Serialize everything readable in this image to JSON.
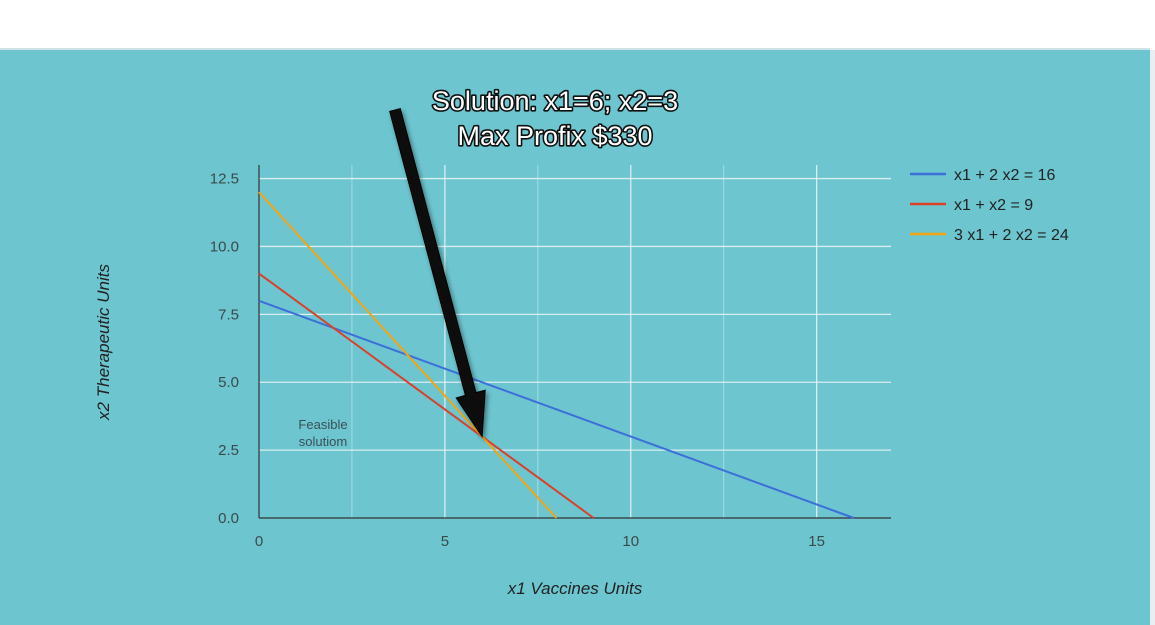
{
  "callout": {
    "line1": "Solution: x1=6; x2=3",
    "line2": "Max Profix $330",
    "target": {
      "x": 6,
      "y": 3
    }
  },
  "annotation": {
    "line1": "Feasible",
    "line2": "solutiom"
  },
  "chart_data": {
    "type": "line",
    "title": "",
    "xlabel": "x1 Vaccines Units",
    "ylabel": "x2 Therapeutic Units",
    "xlim": [
      0,
      17
    ],
    "ylim": [
      0,
      13
    ],
    "xticks": [
      0,
      5,
      10,
      15
    ],
    "xtick_labels": [
      "0",
      "5",
      "10",
      "15"
    ],
    "yticks": [
      0,
      2.5,
      5,
      7.5,
      10,
      12.5
    ],
    "ytick_labels": [
      "0.0",
      "2.5",
      "5.0",
      "7.5",
      "10.0",
      "12.5"
    ],
    "grid": true,
    "legend_position": "right",
    "series": [
      {
        "name": "x1 + 2 x2 = 16",
        "color": "#3d6fd9",
        "points": [
          [
            0,
            8
          ],
          [
            16,
            0
          ]
        ]
      },
      {
        "name": "x1 + x2 = 9",
        "color": "#d9412b",
        "points": [
          [
            0,
            9
          ],
          [
            9,
            0
          ]
        ]
      },
      {
        "name": "3 x1 + 2 x2 = 24",
        "color": "#f2a413",
        "points": [
          [
            0,
            12
          ],
          [
            8,
            0
          ]
        ]
      }
    ]
  }
}
